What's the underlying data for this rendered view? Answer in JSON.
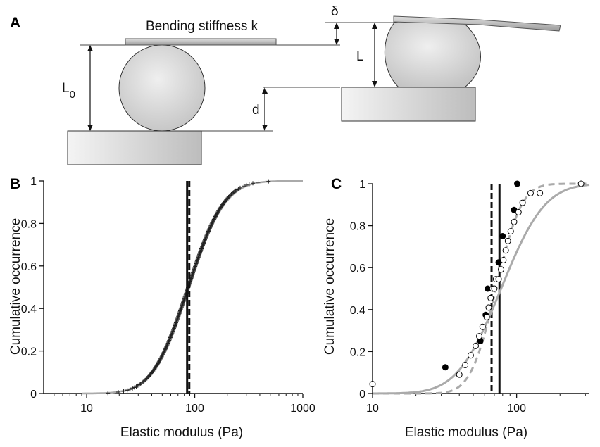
{
  "panels": {
    "a": "A",
    "b": "B",
    "c": "C"
  },
  "diagram": {
    "stiffness_label": "Bending stiffness k",
    "l0_label": "L",
    "l0_sub": "0",
    "d_label": "d",
    "delta_label": "δ",
    "l_label": "L"
  },
  "chart_data": [
    {
      "type": "scatter",
      "panel": "B",
      "xlabel": "Elastic modulus (Pa)",
      "ylabel": "Cumulative occurrence",
      "xscale": "log",
      "xlim": [
        4,
        1000
      ],
      "ylim": [
        0,
        1
      ],
      "x_ticks": [
        "10",
        "100",
        "1000"
      ],
      "y_ticks": [
        "0",
        "0.2",
        "0.4",
        "0.6",
        "0.8",
        "1"
      ],
      "vlines": [
        {
          "x": 85,
          "style": "solid",
          "color": "#111111"
        },
        {
          "x": 89,
          "style": "dashed",
          "color": "#111111"
        }
      ],
      "fit_curve": {
        "color": "#aaaaaa",
        "median": 88,
        "sigma": 0.62
      },
      "markers": {
        "shape": "plus",
        "color": "#222222",
        "median": 87,
        "sigma": 0.6,
        "x_min": 9,
        "x_max": 550
      }
    },
    {
      "type": "scatter",
      "panel": "C",
      "xlabel": "Elastic modulus (Pa)",
      "ylabel": "Cumulative occurrence",
      "xscale": "log",
      "xlim": [
        10,
        320
      ],
      "ylim": [
        0,
        1
      ],
      "x_ticks": [
        "10",
        "100"
      ],
      "y_ticks": [
        "0",
        "0.2",
        "0.4",
        "0.6",
        "0.8",
        "1"
      ],
      "vlines": [
        {
          "x": 76,
          "style": "solid",
          "color": "#111111"
        },
        {
          "x": 67,
          "style": "dashed",
          "color": "#111111"
        }
      ],
      "series": [
        {
          "marker": "filled-circle",
          "color": "#000000",
          "x": [
            32,
            56,
            61,
            63,
            75,
            80,
            96,
            101
          ],
          "y": [
            0.125,
            0.25,
            0.375,
            0.5,
            0.625,
            0.75,
            0.875,
            1.0
          ]
        },
        {
          "marker": "open-circle",
          "color": "#000000",
          "x": [
            10,
            40,
            44,
            48,
            52,
            55,
            58,
            62,
            64,
            66,
            68,
            70,
            72,
            75,
            78,
            81,
            84,
            87,
            91,
            96,
            103,
            110,
            125,
            145,
            280
          ],
          "y": [
            0.045,
            0.09,
            0.136,
            0.182,
            0.227,
            0.273,
            0.318,
            0.364,
            0.41,
            0.455,
            0.5,
            0.5,
            0.545,
            0.545,
            0.591,
            0.636,
            0.682,
            0.727,
            0.773,
            0.818,
            0.864,
            0.909,
            0.955,
            0.955,
            1.0
          ]
        }
      ],
      "curves": [
        {
          "style": "solid",
          "color": "#aaaaaa",
          "median": 78,
          "sigma": 0.55
        },
        {
          "style": "dashed",
          "color": "#aaaaaa",
          "median": 72,
          "sigma": 0.32
        }
      ]
    }
  ]
}
